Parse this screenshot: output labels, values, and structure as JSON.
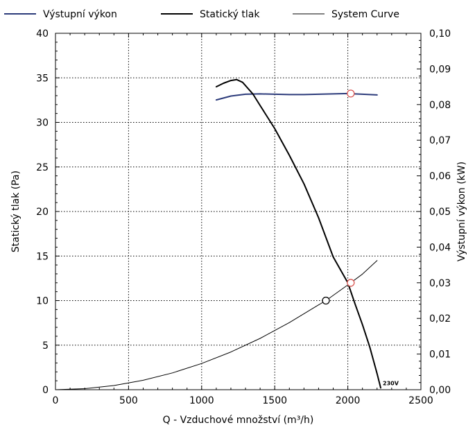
{
  "chart_data": {
    "type": "line",
    "x_axis": {
      "label": "Q - Vzduchové množství (m³/h)",
      "range": [
        0,
        2500
      ],
      "ticks": [
        0,
        500,
        1000,
        1500,
        2000,
        2500
      ],
      "tick_labels": [
        "0",
        "500",
        "1000",
        "1500",
        "2000",
        "2500"
      ]
    },
    "y_axis_left": {
      "label": "Statický tlak (Pa)",
      "range": [
        0,
        40
      ],
      "ticks": [
        0,
        5,
        10,
        15,
        20,
        25,
        30,
        35,
        40
      ],
      "tick_labels": [
        "0",
        "5",
        "10",
        "15",
        "20",
        "25",
        "30",
        "35",
        "40"
      ]
    },
    "y_axis_right": {
      "label": "Výstupní výkon (kW)",
      "range": [
        0,
        0.1
      ],
      "ticks": [
        0,
        0.01,
        0.02,
        0.03,
        0.04,
        0.05,
        0.06,
        0.07,
        0.08,
        0.09,
        0.1
      ],
      "tick_labels": [
        "0,00",
        "0,01",
        "0,02",
        "0,03",
        "0,04",
        "0,05",
        "0,06",
        "0,07",
        "0,08",
        "0,09",
        "0,10"
      ]
    },
    "grid": "dotted",
    "legend_position": "top",
    "series": [
      {
        "name": "Výstupní výkon",
        "axis": "right",
        "color": "#2b3a7a",
        "line_width": 2,
        "x": [
          1100,
          1200,
          1300,
          1400,
          1500,
          1600,
          1700,
          1800,
          1900,
          2000,
          2100,
          2200
        ],
        "y": [
          0.0813,
          0.0824,
          0.0829,
          0.083,
          0.0829,
          0.0828,
          0.0828,
          0.0829,
          0.083,
          0.0831,
          0.0829,
          0.0827
        ]
      },
      {
        "name": "Statický tlak",
        "axis": "left",
        "color": "#000000",
        "line_width": 2,
        "x": [
          1100,
          1150,
          1200,
          1240,
          1280,
          1350,
          1400,
          1500,
          1600,
          1700,
          1800,
          1900,
          2000,
          2050,
          2100,
          2150,
          2200,
          2225
        ],
        "y": [
          34.0,
          34.4,
          34.7,
          34.8,
          34.5,
          33.2,
          31.9,
          29.3,
          26.3,
          23.1,
          19.3,
          14.9,
          12.0,
          9.6,
          7.3,
          4.8,
          1.8,
          0.2
        ]
      },
      {
        "name": "System Curve",
        "axis": "left",
        "color": "#000000",
        "line_width": 1,
        "x": [
          0,
          200,
          400,
          600,
          800,
          1000,
          1200,
          1400,
          1600,
          1800,
          1850,
          2000,
          2100,
          2200
        ],
        "y": [
          0,
          0.12,
          0.47,
          1.06,
          1.88,
          2.94,
          4.23,
          5.76,
          7.53,
          9.52,
          10.0,
          11.76,
          12.97,
          14.5
        ]
      }
    ],
    "markers": [
      {
        "axis": "right",
        "x": 2020,
        "y": 0.0831,
        "stroke": "#d9534f",
        "fill": "#ffffff"
      },
      {
        "axis": "left",
        "x": 2020,
        "y": 12.0,
        "stroke": "#d9534f",
        "fill": "#ffffff"
      },
      {
        "axis": "left",
        "x": 1850,
        "y": 10.0,
        "stroke": "#000000",
        "fill": "#ffffff"
      }
    ],
    "annotations": [
      {
        "text": "230V",
        "x": 2225,
        "y": 0.2,
        "axis": "left"
      }
    ]
  }
}
